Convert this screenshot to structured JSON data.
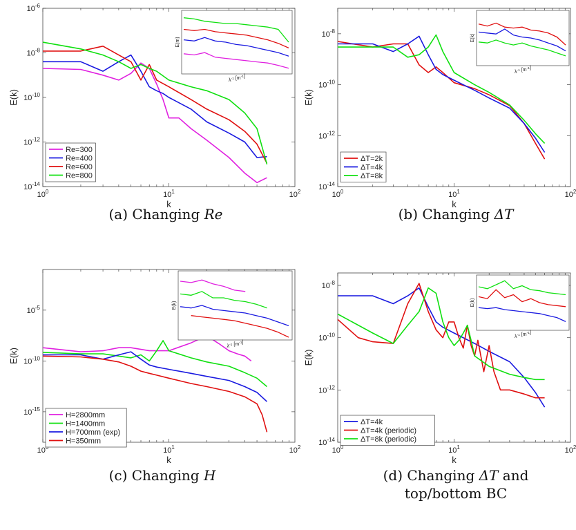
{
  "figure": {
    "captions": [
      {
        "prefix": "(a) Changing ",
        "symbol": "Re",
        "suffix": ""
      },
      {
        "prefix": "(b) Changing ",
        "symbol": "ΔT",
        "suffix": ""
      },
      {
        "prefix": "(c) Changing ",
        "symbol": "H",
        "suffix": ""
      },
      {
        "prefix": "(d) Changing ",
        "symbol": "ΔT",
        "suffix": " and",
        "line2": "top/bottom BC"
      }
    ]
  },
  "chart_data": [
    {
      "type": "line",
      "xlabel": "k",
      "ylabel": "E(k)",
      "xscale": "log",
      "yscale": "log",
      "xlim": [
        1,
        100
      ],
      "ylim": [
        1e-14,
        1e-06
      ],
      "xticks": [
        1,
        10,
        100
      ],
      "xtick_labels": [
        "10^0",
        "10^1",
        "10^2"
      ],
      "yticks": [
        1e-14,
        1e-12,
        1e-10,
        1e-08,
        1e-06
      ],
      "ytick_labels": [
        "10^-14",
        "10^-12",
        "10^-10",
        "10^-8",
        "10^-6"
      ],
      "legend": "bottom-left",
      "series": [
        {
          "name": "Re=300",
          "color": "#e020e0",
          "x": [
            1,
            2,
            3,
            4,
            5,
            6,
            7,
            8,
            9,
            10,
            12,
            15,
            20,
            30,
            40,
            50,
            60
          ],
          "y": [
            2e-09,
            1.8e-09,
            1e-09,
            6e-10,
            1.2e-09,
            3.5e-09,
            2e-09,
            4e-10,
            8e-11,
            1.2e-11,
            1.2e-11,
            4e-12,
            1.2e-12,
            2e-13,
            4e-14,
            1.5e-14,
            2.5e-14
          ]
        },
        {
          "name": "Re=400",
          "color": "#1a1ae0",
          "x": [
            1,
            2,
            3,
            4,
            5,
            6,
            7,
            8,
            9,
            10,
            15,
            20,
            30,
            40,
            50,
            60
          ],
          "y": [
            4e-09,
            4e-09,
            1.5e-09,
            4e-09,
            8e-09,
            1.5e-09,
            3e-10,
            2e-10,
            1.5e-10,
            1e-10,
            3e-11,
            8e-12,
            2.5e-12,
            1e-12,
            2e-13,
            2.2e-13
          ]
        },
        {
          "name": "Re=600",
          "color": "#e01010",
          "x": [
            1,
            2,
            3,
            4,
            5,
            6,
            7,
            8,
            10,
            15,
            20,
            30,
            40,
            50,
            60
          ],
          "y": [
            1.2e-08,
            1.2e-08,
            2e-08,
            8e-09,
            4e-09,
            6e-10,
            3e-09,
            6e-10,
            3e-10,
            8e-11,
            3e-11,
            1e-11,
            3e-12,
            8e-13,
            1.1e-13
          ]
        },
        {
          "name": "Re=800",
          "color": "#10e010",
          "x": [
            1,
            2,
            3,
            4,
            5,
            6,
            7,
            8,
            10,
            15,
            20,
            30,
            40,
            50,
            60
          ],
          "y": [
            3e-08,
            1.5e-08,
            8e-09,
            4e-09,
            2e-09,
            3e-09,
            2e-09,
            1.5e-09,
            6e-10,
            3e-10,
            2e-10,
            8e-11,
            2e-11,
            4e-12,
            1e-13
          ]
        }
      ],
      "inset": {
        "ylabel": "E(m)",
        "xlabel": "λ^{-1} [m^{-1}]",
        "series": [
          {
            "color": "#10e010",
            "y": [
              0.92,
              0.9,
              0.86,
              0.84,
              0.82,
              0.82,
              0.8,
              0.78,
              0.76,
              0.72,
              0.5
            ]
          },
          {
            "color": "#e01010",
            "y": [
              0.72,
              0.7,
              0.72,
              0.68,
              0.66,
              0.64,
              0.62,
              0.58,
              0.54,
              0.48,
              0.4
            ]
          },
          {
            "color": "#1a1ae0",
            "y": [
              0.54,
              0.52,
              0.58,
              0.52,
              0.5,
              0.46,
              0.44,
              0.4,
              0.36,
              0.32,
              0.26
            ]
          },
          {
            "color": "#e020e0",
            "y": [
              0.3,
              0.28,
              0.32,
              0.24,
              0.22,
              0.2,
              0.18,
              0.16,
              0.14,
              0.1,
              0.05
            ]
          }
        ]
      }
    },
    {
      "type": "line",
      "xlabel": "k",
      "ylabel": "E(k)",
      "xscale": "log",
      "yscale": "log",
      "xlim": [
        1,
        100
      ],
      "ylim": [
        1e-14,
        1e-07
      ],
      "xticks": [
        1,
        10,
        100
      ],
      "xtick_labels": [
        "10^0",
        "10^1",
        "10^2"
      ],
      "yticks": [
        1e-14,
        1e-12,
        1e-10,
        1e-08
      ],
      "ytick_labels": [
        "10^-14",
        "10^-12",
        "10^-10",
        "10^-8"
      ],
      "legend": "bottom-left",
      "series": [
        {
          "name": "ΔT=2k",
          "color": "#e01010",
          "x": [
            1,
            2,
            3,
            4,
            5,
            6,
            7,
            8,
            10,
            15,
            20,
            30,
            40,
            50,
            60
          ],
          "y": [
            5e-09,
            3e-09,
            4e-09,
            4e-09,
            6e-10,
            3e-10,
            5e-10,
            3e-10,
            1.2e-10,
            7e-11,
            4e-11,
            1.5e-11,
            3e-12,
            5e-13,
            1.2e-13
          ]
        },
        {
          "name": "ΔT=4k",
          "color": "#1a1ae0",
          "x": [
            1,
            2,
            3,
            4,
            5,
            6,
            7,
            8,
            10,
            15,
            20,
            30,
            40,
            50,
            60
          ],
          "y": [
            4e-09,
            4e-09,
            2e-09,
            4e-09,
            8e-09,
            1.5e-09,
            4e-10,
            2.5e-10,
            1.5e-10,
            6e-11,
            3e-11,
            1.2e-11,
            3e-12,
            8e-13,
            2.2e-13
          ]
        },
        {
          "name": "ΔT=8k",
          "color": "#10e010",
          "x": [
            1,
            2,
            3,
            4,
            5,
            6,
            7,
            8,
            10,
            15,
            20,
            30,
            40,
            50,
            60
          ],
          "y": [
            3e-09,
            3e-09,
            3e-09,
            1.2e-09,
            1.5e-09,
            3e-09,
            9e-09,
            2e-09,
            3e-10,
            1e-10,
            5e-11,
            1.6e-11,
            4e-12,
            1.2e-12,
            5e-13
          ]
        }
      ],
      "inset": {
        "ylabel": "E(k)",
        "xlabel": "λ^{-1} [m^{-1}]",
        "series": [
          {
            "color": "#e01010",
            "y": [
              0.78,
              0.74,
              0.8,
              0.72,
              0.7,
              0.72,
              0.66,
              0.64,
              0.6,
              0.52,
              0.36
            ]
          },
          {
            "color": "#1a1ae0",
            "y": [
              0.62,
              0.6,
              0.58,
              0.68,
              0.56,
              0.52,
              0.5,
              0.46,
              0.4,
              0.34,
              0.24
            ]
          },
          {
            "color": "#10e010",
            "y": [
              0.42,
              0.4,
              0.46,
              0.4,
              0.36,
              0.4,
              0.34,
              0.3,
              0.26,
              0.2,
              0.14
            ]
          }
        ]
      }
    },
    {
      "type": "line",
      "xlabel": "k",
      "ylabel": "E(k)",
      "xscale": "log",
      "yscale": "log",
      "xlim": [
        1,
        100
      ],
      "ylim": [
        1e-18,
        0.1
      ],
      "xticks": [
        1,
        10,
        100
      ],
      "xtick_labels": [
        "10^0",
        "10^1",
        "10^2"
      ],
      "yticks": [
        1e-15,
        1e-10,
        1e-05
      ],
      "ytick_labels": [
        "10^-15",
        "10^-10",
        "10^-5"
      ],
      "legend": "bottom-left",
      "series": [
        {
          "name": "H=2800mm",
          "color": "#e020e0",
          "x": [
            1,
            2,
            3,
            4,
            5,
            7,
            10,
            15,
            20,
            25,
            30,
            35,
            40,
            45
          ],
          "y": [
            2e-09,
            8e-10,
            1e-09,
            2e-09,
            2e-09,
            1e-09,
            1e-09,
            6e-09,
            3e-08,
            5e-09,
            1e-09,
            5e-10,
            3e-10,
            1e-10
          ]
        },
        {
          "name": "H=1400mm",
          "color": "#10e010",
          "x": [
            1,
            2,
            3,
            4,
            5,
            6,
            7,
            8,
            9,
            10,
            15,
            20,
            30,
            40,
            50,
            60
          ],
          "y": [
            7e-10,
            5e-10,
            5e-10,
            3e-10,
            2e-10,
            4e-10,
            1e-10,
            1e-09,
            1e-08,
            1e-09,
            2e-10,
            8e-11,
            3e-11,
            7e-12,
            2e-12,
            3e-13
          ]
        },
        {
          "name": "H=700mm (exp)",
          "color": "#1a1ae0",
          "x": [
            1,
            2,
            3,
            4,
            5,
            6,
            7,
            8,
            10,
            15,
            20,
            30,
            40,
            50,
            60
          ],
          "y": [
            4e-10,
            4e-10,
            1.5e-10,
            4e-10,
            8e-10,
            1.5e-10,
            4e-11,
            2.5e-11,
            1.5e-11,
            6e-12,
            3e-12,
            1.2e-12,
            3e-13,
            8e-14,
            1e-14
          ]
        },
        {
          "name": "H=350mm",
          "color": "#e01010",
          "x": [
            1,
            2,
            3,
            4,
            5,
            6,
            7,
            8,
            10,
            15,
            20,
            30,
            40,
            50,
            55,
            60
          ],
          "y": [
            3e-10,
            2.5e-10,
            1.5e-10,
            8e-11,
            3e-11,
            1e-11,
            6e-12,
            4e-12,
            2e-12,
            6e-13,
            3e-13,
            1e-13,
            3e-14,
            6e-15,
            5e-16,
            1e-17
          ]
        }
      ],
      "inset": {
        "ylabel": "E(k)",
        "xlabel": "λ^{-1} [m^{-1}]",
        "series": [
          {
            "color": "#e020e0",
            "x": [
              0,
              0.1,
              0.2,
              0.3,
              0.4,
              0.5,
              0.6
            ],
            "y": [
              0.88,
              0.86,
              0.9,
              0.84,
              0.8,
              0.74,
              0.72
            ]
          },
          {
            "color": "#10e010",
            "x": [
              0,
              0.1,
              0.2,
              0.3,
              0.4,
              0.5,
              0.6,
              0.7,
              0.8
            ],
            "y": [
              0.68,
              0.66,
              0.72,
              0.62,
              0.62,
              0.58,
              0.56,
              0.52,
              0.46
            ]
          },
          {
            "color": "#1a1ae0",
            "x": [
              0,
              0.1,
              0.2,
              0.3,
              0.4,
              0.5,
              0.6,
              0.7,
              0.8,
              0.9,
              1.0
            ],
            "y": [
              0.48,
              0.46,
              0.5,
              0.44,
              0.42,
              0.4,
              0.38,
              0.34,
              0.3,
              0.24,
              0.18
            ]
          },
          {
            "color": "#e01010",
            "x": [
              0.1,
              0.2,
              0.3,
              0.4,
              0.5,
              0.6,
              0.7,
              0.8,
              0.9,
              0.95,
              1.0
            ],
            "y": [
              0.34,
              0.32,
              0.3,
              0.28,
              0.26,
              0.22,
              0.18,
              0.14,
              0.08,
              0.04,
              0.0
            ]
          }
        ]
      }
    },
    {
      "type": "line",
      "xlabel": "k",
      "ylabel": "E(k)",
      "xscale": "log",
      "yscale": "log",
      "xlim": [
        1,
        100
      ],
      "ylim": [
        1e-14,
        3e-08
      ],
      "xticks": [
        1,
        10,
        100
      ],
      "xtick_labels": [
        "10^0",
        "10^1",
        "10^2"
      ],
      "yticks": [
        1e-14,
        1e-12,
        1e-10,
        1e-08
      ],
      "ytick_labels": [
        "10^-14",
        "10^-12",
        "10^-10",
        "10^-8"
      ],
      "legend": "bottom-left",
      "series": [
        {
          "name": "ΔT=4k",
          "color": "#1a1ae0",
          "x": [
            1,
            2,
            3,
            4,
            5,
            6,
            7,
            8,
            10,
            15,
            20,
            30,
            40,
            50,
            60
          ],
          "y": [
            4e-09,
            4e-09,
            2e-09,
            4e-09,
            8e-09,
            1.5e-09,
            4e-10,
            2.5e-10,
            1.5e-10,
            6e-11,
            3e-11,
            1.2e-11,
            3e-12,
            8e-13,
            2.2e-13
          ]
        },
        {
          "name": "ΔT=4k (periodic)",
          "color": "#e01010",
          "x": [
            1,
            1.5,
            2,
            3,
            4,
            5,
            6,
            7,
            8,
            9,
            10,
            11,
            12,
            13,
            14,
            15,
            16,
            18,
            20,
            22,
            25,
            30,
            40,
            50,
            60
          ],
          "y": [
            5e-10,
            1e-10,
            7e-11,
            6e-11,
            2e-09,
            1.2e-08,
            1e-09,
            2e-10,
            1e-10,
            4e-10,
            4e-10,
            1e-10,
            4e-11,
            3e-10,
            5e-11,
            2e-11,
            8e-11,
            5e-12,
            5e-11,
            5e-12,
            1e-12,
            1e-12,
            7e-13,
            5e-13,
            5e-13
          ]
        },
        {
          "name": "ΔT=8k (periodic)",
          "color": "#10e010",
          "x": [
            1,
            2,
            3,
            4,
            5,
            6,
            7,
            8,
            9,
            10,
            11,
            12,
            13,
            14,
            15,
            20,
            30,
            40,
            50,
            60
          ],
          "y": [
            8e-10,
            1.5e-10,
            6e-11,
            3e-10,
            1e-09,
            8e-09,
            5e-09,
            4e-10,
            1e-10,
            5e-11,
            8e-11,
            1.5e-10,
            3e-10,
            8e-11,
            2e-11,
            8e-12,
            4e-12,
            3e-12,
            2.5e-12,
            2.5e-12
          ]
        }
      ],
      "inset": {
        "ylabel": "E(k)",
        "xlabel": "λ^{-1} [m^{-1}]",
        "series": [
          {
            "color": "#10e010",
            "y": [
              0.82,
              0.78,
              0.86,
              0.94,
              0.78,
              0.84,
              0.76,
              0.74,
              0.7,
              0.68,
              0.66
            ]
          },
          {
            "color": "#e01010",
            "y": [
              0.62,
              0.58,
              0.76,
              0.6,
              0.66,
              0.52,
              0.58,
              0.5,
              0.46,
              0.44,
              0.42
            ]
          },
          {
            "color": "#1a1ae0",
            "y": [
              0.4,
              0.38,
              0.4,
              0.36,
              0.34,
              0.32,
              0.3,
              0.28,
              0.24,
              0.2,
              0.12
            ]
          }
        ]
      }
    }
  ]
}
